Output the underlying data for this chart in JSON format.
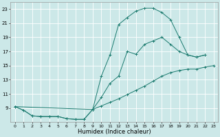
{
  "xlabel": "Humidex (Indice chaleur)",
  "bg_color": "#cce8e8",
  "grid_color": "#ffffff",
  "line_color": "#1a7a6e",
  "xlim": [
    -0.5,
    23.5
  ],
  "ylim": [
    7,
    24
  ],
  "yticks": [
    9,
    11,
    13,
    15,
    17,
    19,
    21,
    23
  ],
  "xticks": [
    0,
    1,
    2,
    3,
    4,
    5,
    6,
    7,
    8,
    9,
    10,
    11,
    12,
    13,
    14,
    15,
    16,
    17,
    18,
    19,
    20,
    21,
    22,
    23
  ],
  "curve_upper_x": [
    0,
    1,
    2,
    3,
    4,
    5,
    6,
    7,
    8,
    9,
    10,
    11,
    12,
    13,
    14,
    15,
    16,
    17,
    18,
    19,
    20,
    21,
    22
  ],
  "curve_upper_y": [
    9.2,
    8.7,
    7.9,
    7.8,
    7.8,
    7.8,
    7.5,
    7.4,
    7.4,
    8.8,
    13.5,
    16.5,
    20.8,
    21.8,
    22.7,
    23.1,
    23.1,
    22.5,
    21.5,
    19.0,
    16.5,
    16.2,
    16.5
  ],
  "curve_lower_x": [
    0,
    1,
    2,
    3,
    4,
    5,
    6,
    7,
    8,
    9,
    10,
    11,
    12,
    13,
    14,
    15,
    16,
    17,
    18,
    19,
    20,
    21,
    22,
    23
  ],
  "curve_lower_y": [
    9.2,
    8.7,
    7.9,
    7.8,
    7.8,
    7.8,
    7.5,
    7.4,
    7.4,
    8.8,
    9.3,
    9.8,
    10.3,
    10.9,
    11.5,
    12.1,
    12.8,
    13.5,
    14.0,
    14.3,
    14.5,
    14.5,
    14.8,
    15.0
  ],
  "curve_mid_x": [
    0,
    9,
    10,
    11,
    12,
    13,
    14,
    15,
    16,
    17,
    18,
    19,
    20,
    21,
    22
  ],
  "curve_mid_y": [
    9.2,
    8.8,
    10.5,
    12.5,
    13.5,
    17.0,
    16.6,
    18.0,
    18.5,
    19.0,
    18.0,
    17.0,
    16.5,
    16.2,
    16.5
  ]
}
